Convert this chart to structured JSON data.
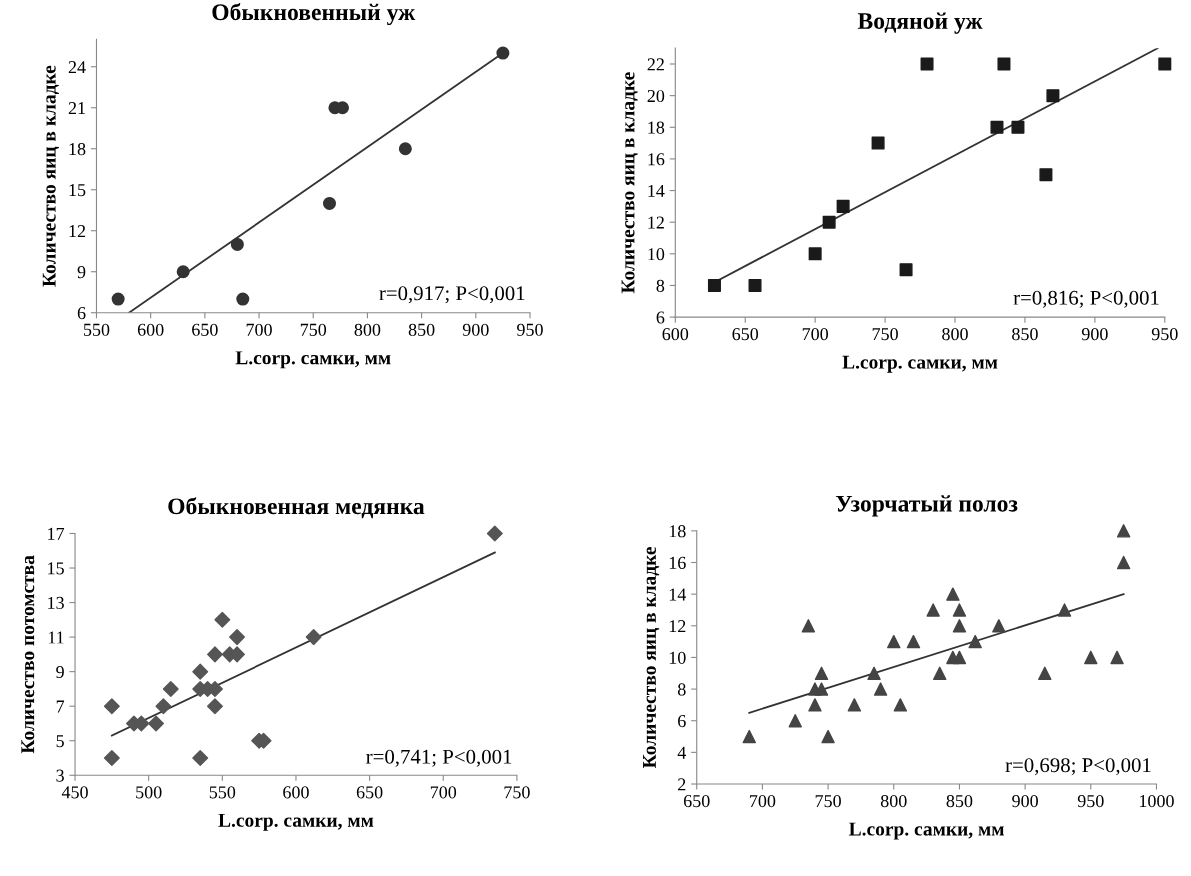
{
  "chart_data": [
    {
      "type": "scatter",
      "title": "Обыкновенный уж",
      "xlabel": "L.corp. самки, мм",
      "ylabel": "Количество яиц в кладке",
      "xlim": [
        550,
        950
      ],
      "xticks": [
        550,
        600,
        650,
        700,
        750,
        800,
        850,
        900,
        950
      ],
      "ylim": [
        6,
        26
      ],
      "yticks": [
        6,
        9,
        12,
        15,
        18,
        21,
        24
      ],
      "grid": false,
      "annotations": [
        "r=0,917; P<0,001"
      ],
      "series": [
        {
          "marker": "circle",
          "color": "#333333",
          "x": [
            570,
            630,
            680,
            685,
            765,
            770,
            777,
            835,
            925
          ],
          "values": [
            7,
            9,
            11,
            7,
            14,
            21,
            21,
            18,
            25
          ]
        },
        {
          "type": "line",
          "marker": "none",
          "color": "#333333",
          "x": [
            580,
            925
          ],
          "values": [
            6,
            25
          ]
        }
      ]
    },
    {
      "type": "scatter",
      "title": "Водяной уж",
      "xlabel": "L.corp. самки, мм",
      "ylabel": "Количество яиц в кладке",
      "xlim": [
        600,
        950
      ],
      "xticks": [
        600,
        650,
        700,
        750,
        800,
        850,
        900,
        950
      ],
      "ylim": [
        6,
        23
      ],
      "yticks": [
        6,
        8,
        10,
        12,
        14,
        16,
        18,
        20,
        22
      ],
      "grid": false,
      "annotations": [
        "r=0,816; P<0,001"
      ],
      "series": [
        {
          "marker": "square",
          "color": "#1a1a1a",
          "x": [
            628,
            657,
            700,
            710,
            720,
            745,
            765,
            780,
            830,
            835,
            845,
            865,
            870,
            950
          ],
          "values": [
            8,
            8,
            10,
            12,
            13,
            17,
            9,
            22,
            18,
            22,
            18,
            15,
            20,
            22
          ]
        },
        {
          "type": "line",
          "marker": "none",
          "color": "#333333",
          "x": [
            628,
            945
          ],
          "values": [
            8.2,
            23
          ]
        }
      ]
    },
    {
      "type": "scatter",
      "title": "Обыкновенная медянка",
      "xlabel": "L.corp. самки, мм",
      "ylabel": "Количество потомства",
      "xlim": [
        450,
        750
      ],
      "xticks": [
        450,
        500,
        550,
        600,
        650,
        700,
        750
      ],
      "ylim": [
        3,
        17
      ],
      "yticks": [
        3,
        5,
        7,
        9,
        11,
        13,
        15,
        17
      ],
      "grid": false,
      "annotations": [
        "r=0,741; P<0,001"
      ],
      "series": [
        {
          "marker": "diamond",
          "color": "#555555",
          "x": [
            475,
            475,
            490,
            495,
            505,
            510,
            515,
            535,
            535,
            535,
            540,
            545,
            545,
            545,
            550,
            555,
            560,
            560,
            575,
            578,
            612,
            735
          ],
          "values": [
            7,
            4,
            6,
            6,
            6,
            7,
            8,
            9,
            8,
            4,
            8,
            8,
            10,
            7,
            12,
            10,
            10,
            11,
            5,
            5,
            11,
            17
          ]
        },
        {
          "type": "line",
          "marker": "none",
          "color": "#333333",
          "x": [
            475,
            735
          ],
          "values": [
            5.3,
            15.9
          ]
        }
      ]
    },
    {
      "type": "scatter",
      "title": "Узорчатый полоз",
      "xlabel": "L.corp. самки, мм",
      "ylabel": "Количество яиц в кладке",
      "xlim": [
        650,
        1000
      ],
      "xticks": [
        650,
        700,
        750,
        800,
        850,
        900,
        950,
        1000
      ],
      "ylim": [
        2,
        18
      ],
      "yticks": [
        2,
        4,
        6,
        8,
        10,
        12,
        14,
        16,
        18
      ],
      "grid": false,
      "annotations": [
        "r=0,698; P<0,001"
      ],
      "series": [
        {
          "marker": "triangle",
          "color": "#444444",
          "x": [
            690,
            725,
            735,
            740,
            740,
            745,
            745,
            750,
            770,
            785,
            790,
            800,
            805,
            815,
            830,
            835,
            845,
            845,
            850,
            850,
            850,
            862,
            880,
            915,
            930,
            950,
            970,
            975,
            975
          ],
          "values": [
            5,
            6,
            12,
            7,
            8,
            8,
            9,
            5,
            7,
            9,
            8,
            11,
            7,
            11,
            13,
            9,
            14,
            10,
            13,
            12,
            10,
            11,
            12,
            9,
            13,
            10,
            10,
            16,
            18
          ]
        },
        {
          "type": "line",
          "marker": "none",
          "color": "#333333",
          "x": [
            690,
            975
          ],
          "values": [
            6.5,
            14
          ]
        }
      ]
    }
  ]
}
